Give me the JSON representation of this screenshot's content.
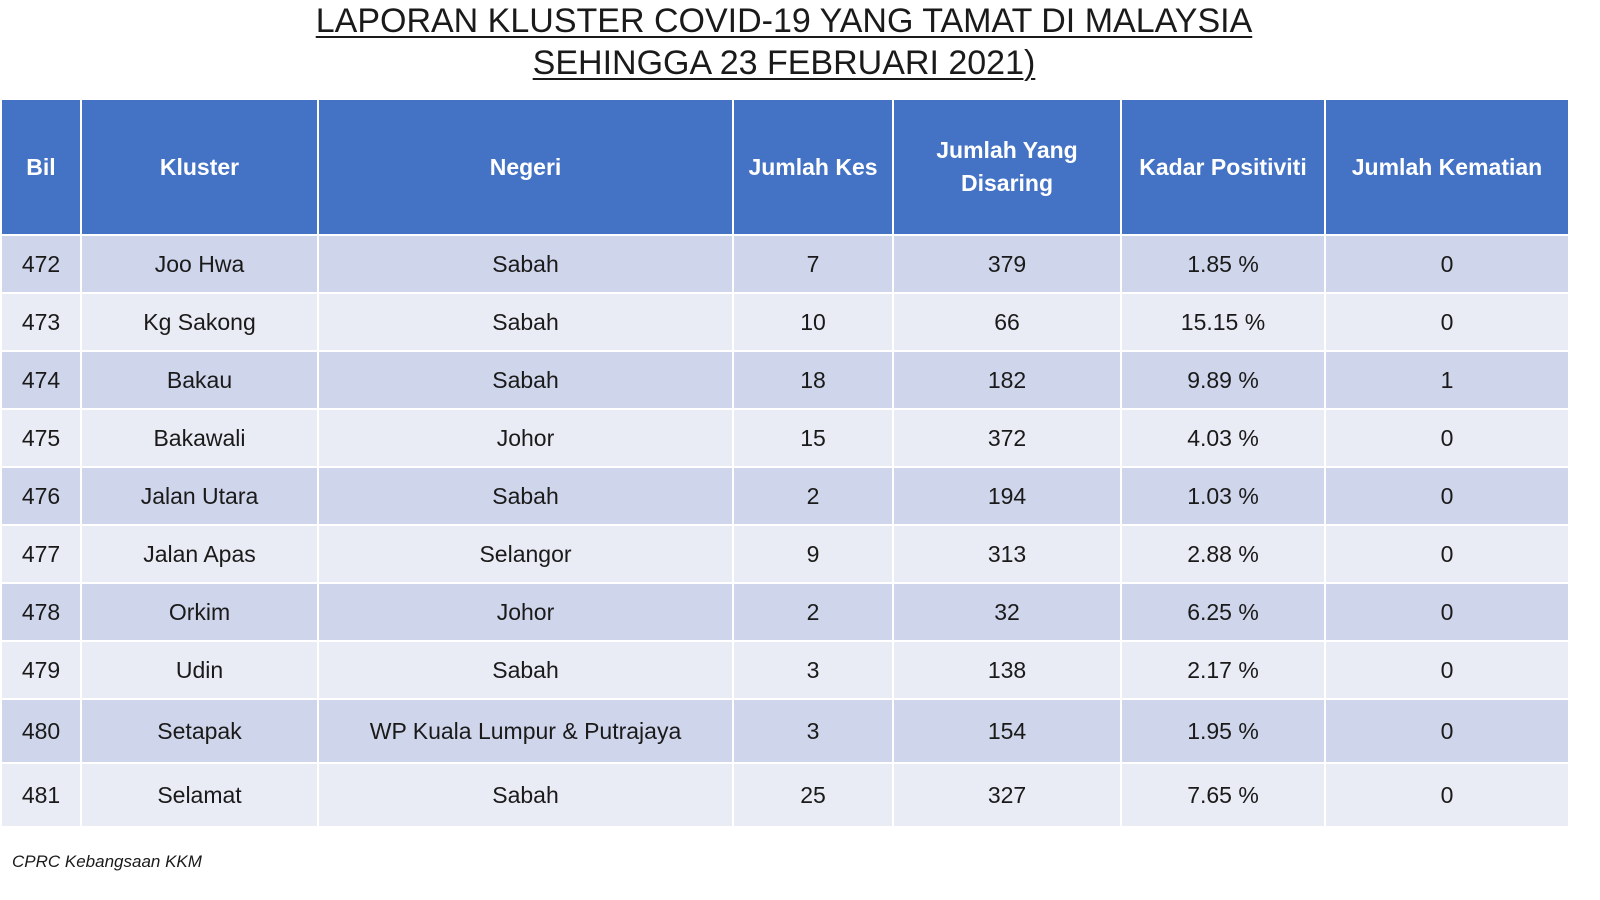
{
  "title": {
    "line1": "LAPORAN KLUSTER COVID-19 YANG TAMAT DI MALAYSIA",
    "line2": "SEHINGGA 23 FEBRUARI 2021)"
  },
  "table": {
    "headers": {
      "bil": "Bil",
      "kluster": "Kluster",
      "negeri": "Negeri",
      "jumlah_kes": "Jumlah Kes",
      "jumlah_disaring": "Jumlah Yang Disaring",
      "kadar_positiviti": "Kadar Positiviti",
      "jumlah_kematian": "Jumlah Kematian"
    },
    "rows": [
      {
        "bil": "472",
        "kluster": "Joo Hwa",
        "negeri": "Sabah",
        "kes": "7",
        "disaring": "379",
        "kadar": "1.85 %",
        "kematian": "0"
      },
      {
        "bil": "473",
        "kluster": "Kg Sakong",
        "negeri": "Sabah",
        "kes": "10",
        "disaring": "66",
        "kadar": "15.15 %",
        "kematian": "0"
      },
      {
        "bil": "474",
        "kluster": "Bakau",
        "negeri": "Sabah",
        "kes": "18",
        "disaring": "182",
        "kadar": "9.89 %",
        "kematian": "1"
      },
      {
        "bil": "475",
        "kluster": "Bakawali",
        "negeri": "Johor",
        "kes": "15",
        "disaring": "372",
        "kadar": "4.03 %",
        "kematian": "0"
      },
      {
        "bil": "476",
        "kluster": "Jalan Utara",
        "negeri": "Sabah",
        "kes": "2",
        "disaring": "194",
        "kadar": "1.03 %",
        "kematian": "0"
      },
      {
        "bil": "477",
        "kluster": "Jalan Apas",
        "negeri": "Selangor",
        "kes": "9",
        "disaring": "313",
        "kadar": "2.88 %",
        "kematian": "0"
      },
      {
        "bil": "478",
        "kluster": "Orkim",
        "negeri": "Johor",
        "kes": "2",
        "disaring": "32",
        "kadar": "6.25 %",
        "kematian": "0"
      },
      {
        "bil": "479",
        "kluster": "Udin",
        "negeri": "Sabah",
        "kes": "3",
        "disaring": "138",
        "kadar": "2.17 %",
        "kematian": "0"
      },
      {
        "bil": "480",
        "kluster": "Setapak",
        "negeri": "WP Kuala Lumpur & Putrajaya",
        "kes": "3",
        "disaring": "154",
        "kadar": "1.95 %",
        "kematian": "0"
      },
      {
        "bil": "481",
        "kluster": "Selamat",
        "negeri": "Sabah",
        "kes": "25",
        "disaring": "327",
        "kadar": "7.65 %",
        "kematian": "0"
      }
    ]
  },
  "source": "CPRC Kebangsaan KKM"
}
